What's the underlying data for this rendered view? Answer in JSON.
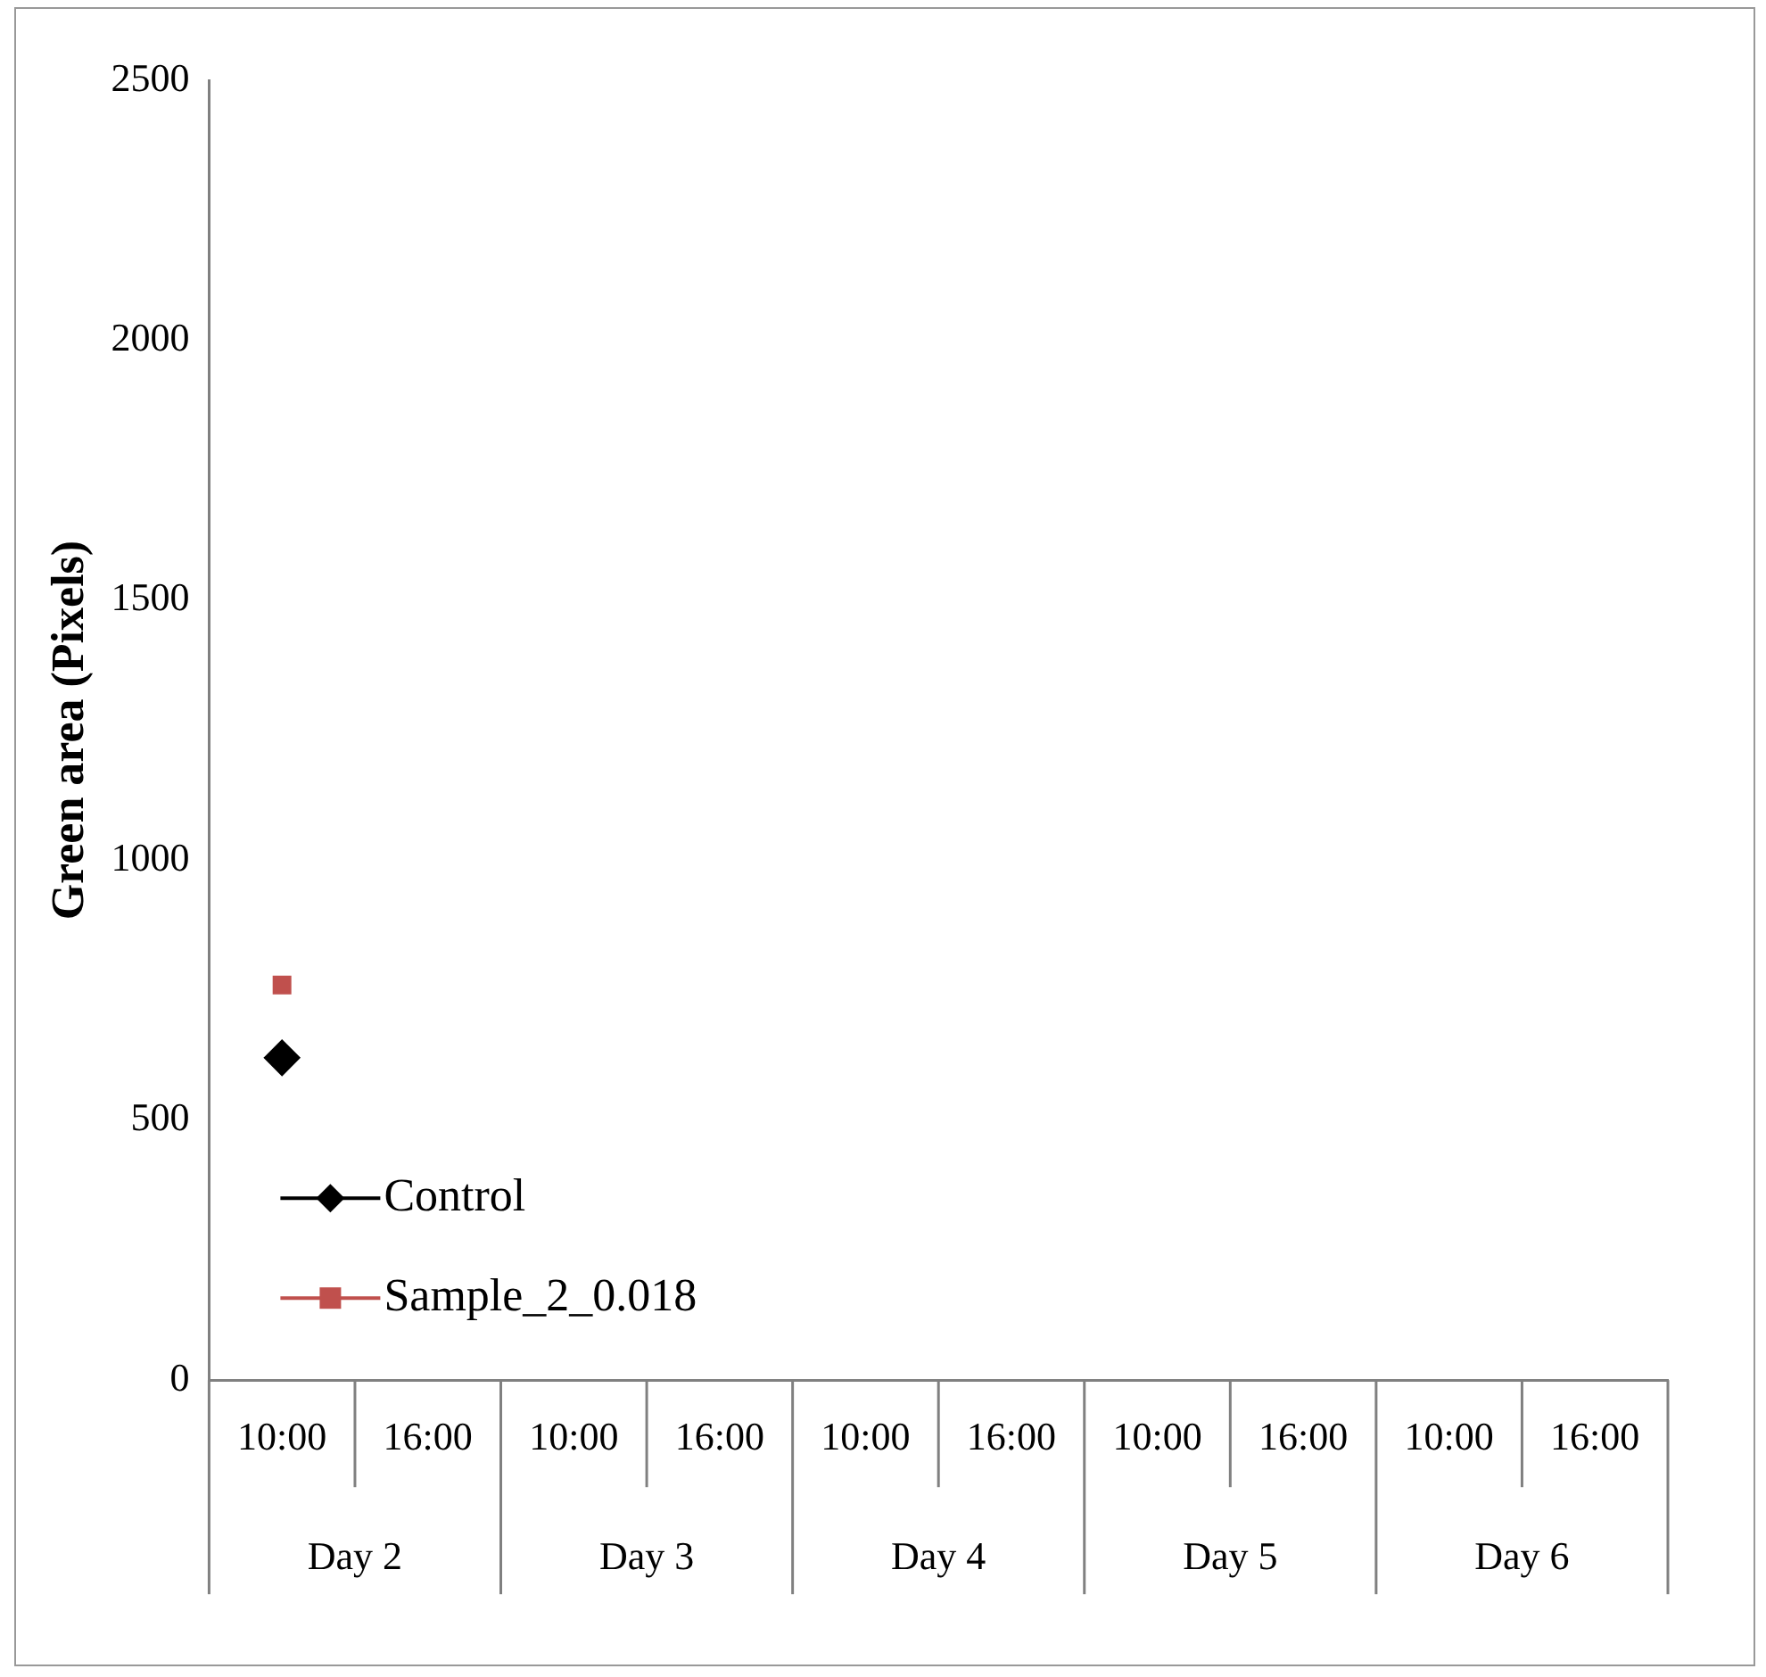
{
  "chart_data": {
    "type": "line",
    "ylabel": "Green area (Pixels)",
    "categories": [
      "10:00",
      "16:00",
      "10:00",
      "16:00",
      "10:00",
      "16:00",
      "10:00",
      "16:00",
      "10:00",
      "16:00"
    ],
    "annotations": [
      "Day 2",
      "Day 3",
      "Day 4",
      "Day 5",
      "Day 6"
    ],
    "series": [
      {
        "name": "Control",
        "color": "#000000",
        "marker": "diamond",
        "values": [
          620,
          null,
          null,
          null,
          null,
          null,
          null,
          null,
          null,
          null
        ]
      },
      {
        "name": "Sample_2_0.018",
        "color": "#c0504d",
        "marker": "square",
        "values": [
          760,
          null,
          null,
          null,
          null,
          null,
          null,
          null,
          null,
          null
        ]
      }
    ],
    "ylim": [
      0,
      2500
    ],
    "yticks": [
      0,
      500,
      1000,
      1500,
      2000,
      2500
    ],
    "grid": false,
    "legend": "bottom left"
  }
}
